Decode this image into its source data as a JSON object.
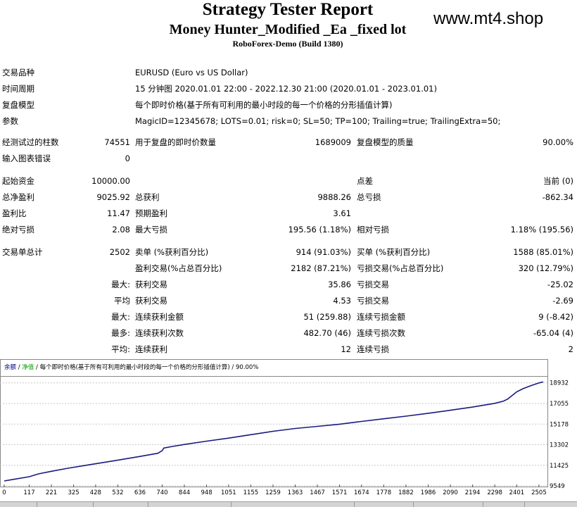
{
  "header": {
    "title": "Strategy Tester Report",
    "subtitle": "Money Hunter_Modified _Ea _fixed lot",
    "server": "RoboForex-Demo (Build 1380)",
    "site": "www.mt4.shop"
  },
  "info": {
    "symbol_label": "交易品种",
    "symbol_value": "EURUSD (Euro vs US Dollar)",
    "period_label": "时间周期",
    "period_value": "15 分钟图 2020.01.01 22:00 - 2022.12.30 21:00 (2020.01.01 - 2023.01.01)",
    "model_label": "复盘模型",
    "model_value": "每个即时价格(基于所有可利用的最小时段的每一个价格的分形插值计算)",
    "params_label": "参数",
    "params_value": "MagicID=12345678; LOTS=0.01; risk=0; SL=50; TP=100; Trailing=true; TrailingExtra=50;"
  },
  "stats": {
    "bars_label": "经测试过的柱数",
    "bars_value": "74551",
    "ticks_label": "用于复盘的即时价数量",
    "ticks_value": "1689009",
    "quality_label": "复盘模型的质量",
    "quality_value": "90.00%",
    "errors_label": "输入图表错误",
    "errors_value": "0",
    "deposit_label": "起始资金",
    "deposit_value": "10000.00",
    "spread_label": "点差",
    "spread_value": "当前 (0)",
    "net_label": "总净盈利",
    "net_value": "9025.92",
    "gross_profit_label": "总获利",
    "gross_profit_value": "9888.26",
    "gross_loss_label": "总亏损",
    "gross_loss_value": "-862.34",
    "pf_label": "盈利比",
    "pf_value": "11.47",
    "payoff_label": "预期盈利",
    "payoff_value": "3.61",
    "abs_dd_label": "绝对亏损",
    "abs_dd_value": "2.08",
    "max_dd_label": "最大亏损",
    "max_dd_value": "195.56 (1.18%)",
    "rel_dd_label": "相对亏损",
    "rel_dd_value": "1.18% (195.56)",
    "trades_label": "交易单总计",
    "trades_value": "2502",
    "short_label": "卖单 (%获利百分比)",
    "short_value": "914 (91.03%)",
    "long_label": "买单 (%获利百分比)",
    "long_value": "1588 (85.01%)",
    "profit_trades_label": "盈利交易(%占总百分比)",
    "profit_trades_value": "2182 (87.21%)",
    "loss_trades_label": "亏损交易(%占总百分比)",
    "loss_trades_value": "320 (12.79%)",
    "largest_label": "最大:",
    "largest_profit_label": "获利交易",
    "largest_profit_value": "35.86",
    "largest_loss_label": "亏损交易",
    "largest_loss_value": "-25.02",
    "average_label": "平均",
    "average_profit_label": "获利交易",
    "average_profit_value": "4.53",
    "average_loss_label": "亏损交易",
    "average_loss_value": "-2.69",
    "max_label": "最大:",
    "max_cons_wins_label": "连续获利金额",
    "max_cons_wins_value": "51 (259.88)",
    "max_cons_losses_label": "连续亏损金额",
    "max_cons_losses_value": "9 (-8.42)",
    "most_label": "最多:",
    "most_cons_profit_label": "连续获利次数",
    "most_cons_profit_value": "482.70 (46)",
    "most_cons_loss_label": "连续亏损次数",
    "most_cons_loss_value": "-65.04 (4)",
    "avg_label": "平均:",
    "avg_cons_wins_label": "连续获利",
    "avg_cons_wins_value": "12",
    "avg_cons_losses_label": "连续亏损",
    "avg_cons_losses_value": "2"
  },
  "chart_data": {
    "type": "line",
    "legend": {
      "balance": "余额",
      "sep1": " / ",
      "equity": "净值",
      "sep2": " / ",
      "model": "每个即时价格(基于所有可利用的最小时段的每一个价格的分形插值计算) / 90.00%"
    },
    "colors": {
      "balance": "#000080",
      "equity": "#009900",
      "line": "#1a1a80",
      "grid": "#c8c8c8"
    },
    "x_ticks": [
      0,
      117,
      221,
      325,
      428,
      532,
      636,
      740,
      844,
      948,
      1051,
      1155,
      1259,
      1363,
      1467,
      1571,
      1674,
      1778,
      1882,
      1986,
      2090,
      2194,
      2298,
      2401,
      2505
    ],
    "y_ticks": [
      9549,
      11425,
      13302,
      15178,
      17055,
      18932
    ],
    "xlim": [
      0,
      2525
    ],
    "ylim": [
      9549,
      19300
    ],
    "x": [
      0,
      40,
      117,
      160,
      221,
      300,
      400,
      520,
      636,
      720,
      740,
      748,
      790,
      844,
      948,
      1051,
      1155,
      1259,
      1363,
      1467,
      1571,
      1674,
      1778,
      1882,
      1986,
      2090,
      2194,
      2298,
      2340,
      2360,
      2401,
      2430,
      2470,
      2505,
      2525
    ],
    "y": [
      10000,
      10130,
      10380,
      10640,
      10880,
      11160,
      11480,
      11850,
      12230,
      12520,
      12760,
      13000,
      13150,
      13320,
      13620,
      13900,
      14210,
      14520,
      14780,
      14970,
      15170,
      15420,
      15660,
      15900,
      16160,
      16440,
      16730,
      17070,
      17280,
      17480,
      18120,
      18400,
      18700,
      18930,
      19020
    ]
  }
}
